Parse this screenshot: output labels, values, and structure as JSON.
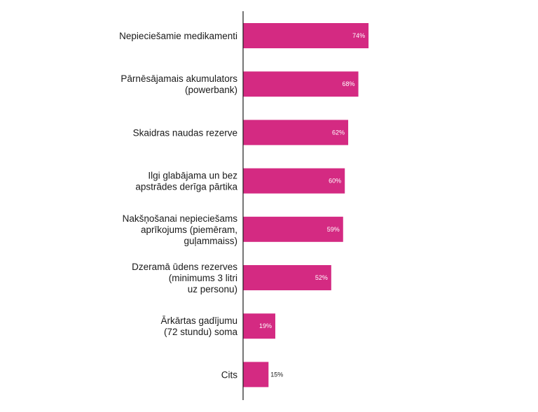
{
  "chart_data": {
    "type": "bar",
    "orientation": "horizontal",
    "categories": [
      [
        "Nepieciešamie medikamenti"
      ],
      [
        "Pārnēsājamais akumulators",
        "(powerbank)"
      ],
      [
        "Skaidras naudas rezerve"
      ],
      [
        "Ilgi glabājama un bez",
        "apstrādes derīga pārtika"
      ],
      [
        "Nakšņošanai nepieciešams",
        "aprīkojums (piemēram,",
        "guļammaiss)"
      ],
      [
        "Dzeramā ūdens rezerves",
        "(minimums 3 litri",
        "uz personu)"
      ],
      [
        "Ārkārtas gadījumu",
        "(72 stundu) soma"
      ],
      [
        "Cits"
      ]
    ],
    "values": [
      74,
      68,
      62,
      60,
      59,
      52,
      19,
      15
    ],
    "value_labels": [
      "74%",
      "68%",
      "62%",
      "60%",
      "59%",
      "52%",
      "19%",
      "15%"
    ],
    "xlim": [
      0,
      100
    ],
    "grid": false,
    "legend": "none",
    "colors": {
      "bar": "#d42a82",
      "label_inside": "#ffffff",
      "label_outside": "#1a1a1a",
      "axis": "#1a1a1a"
    }
  }
}
